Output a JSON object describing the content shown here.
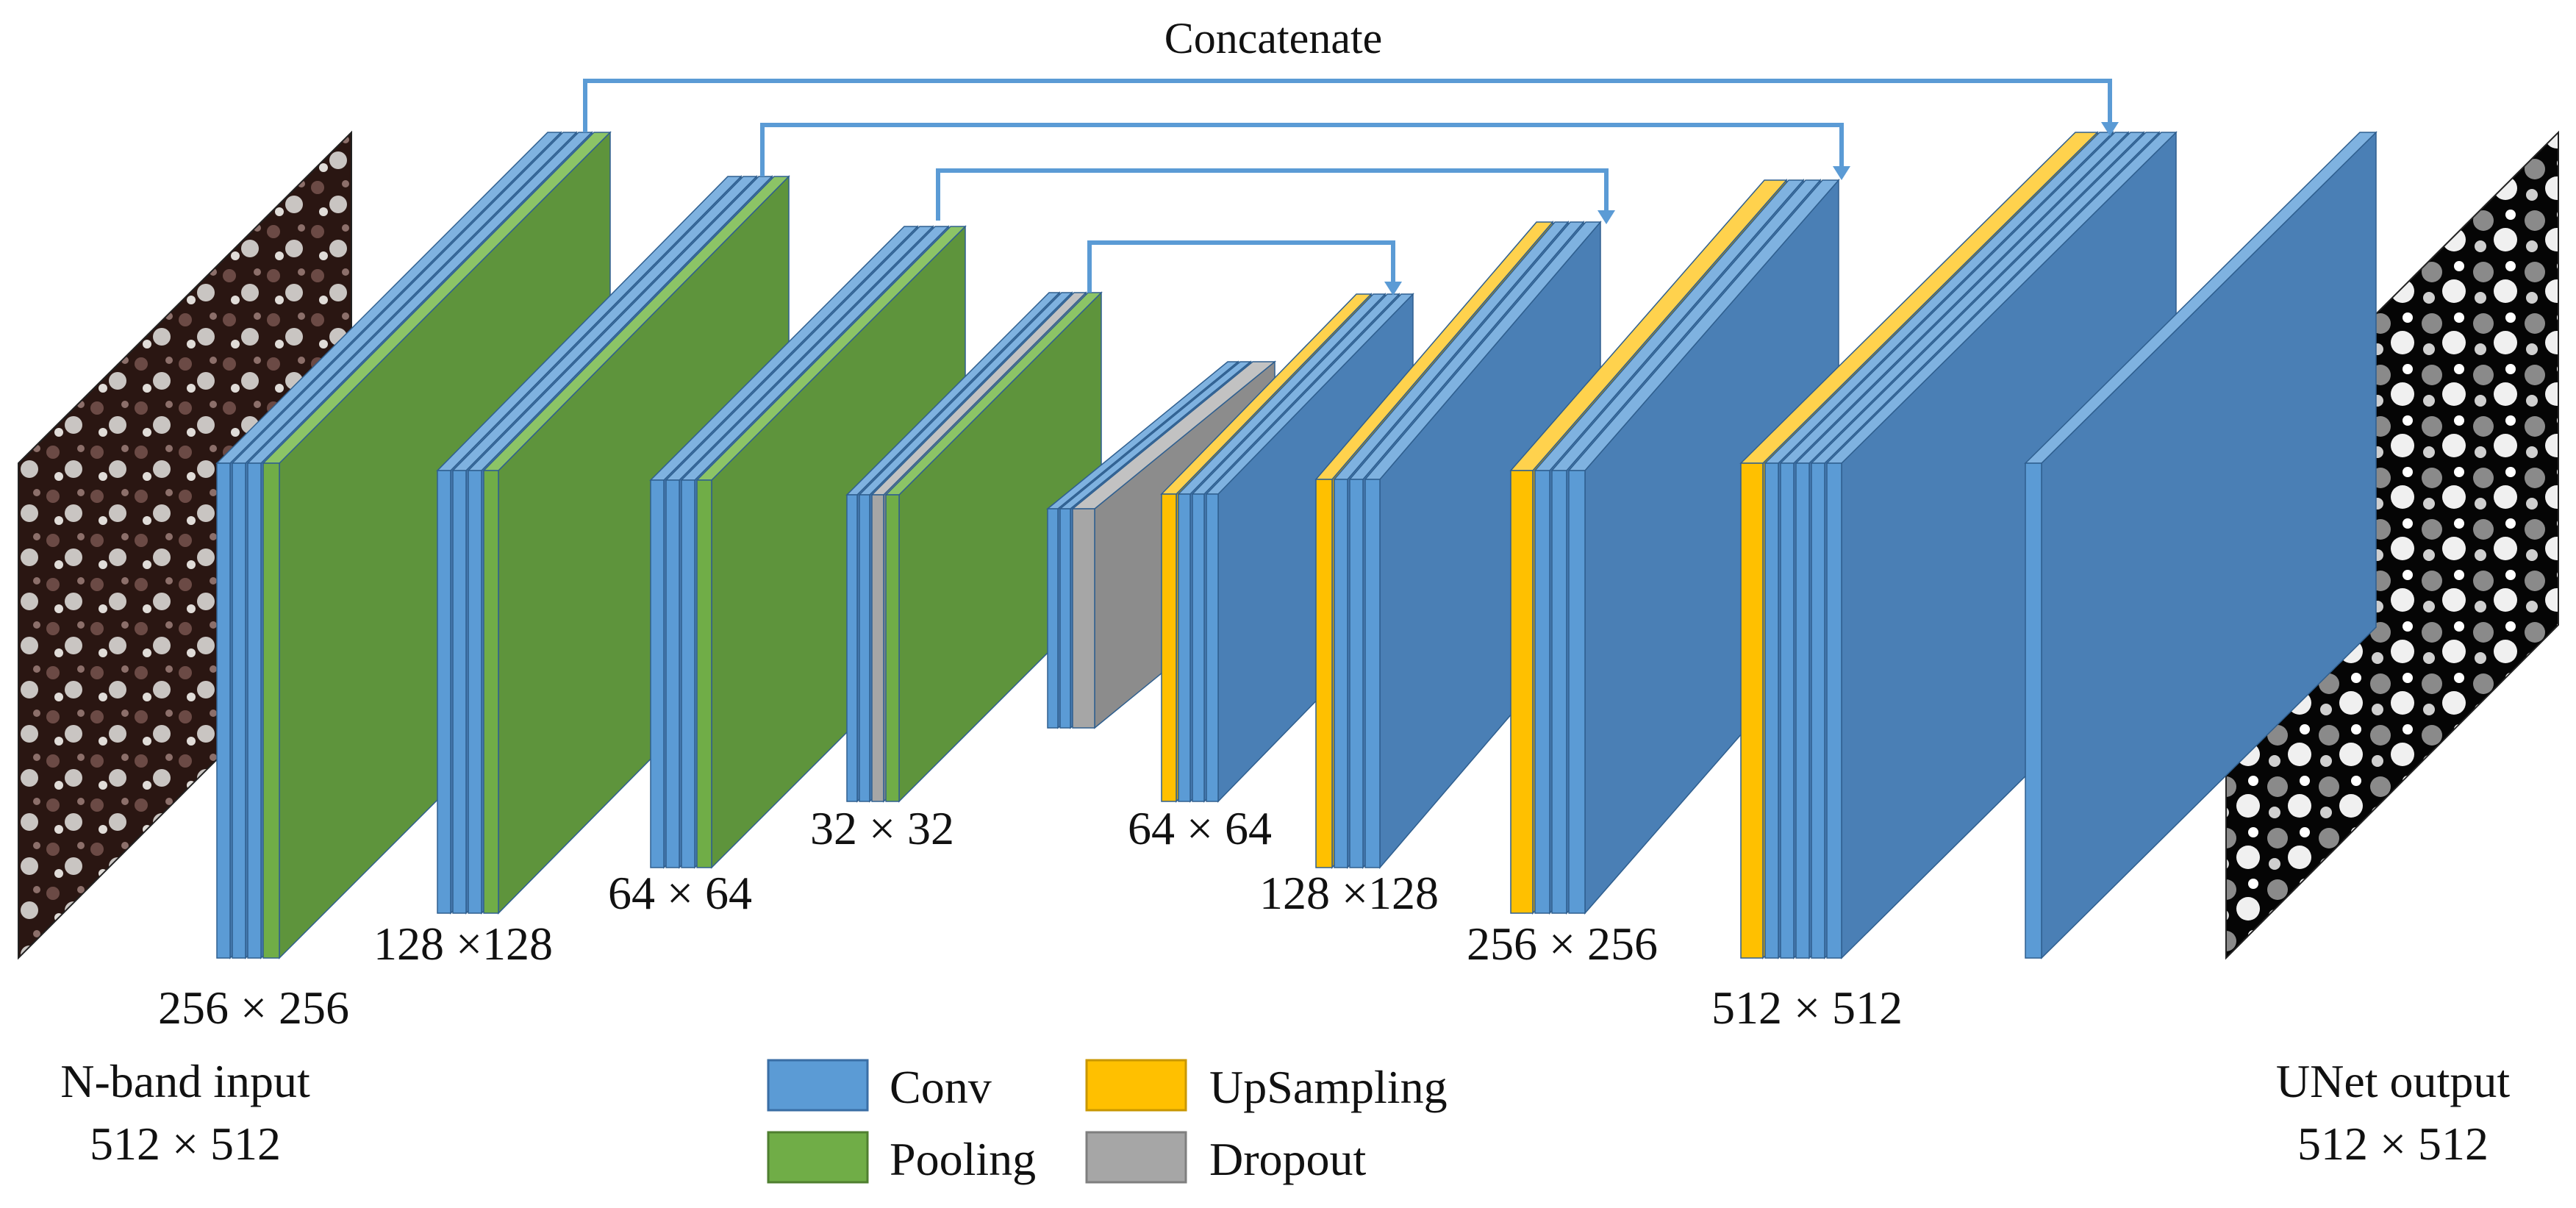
{
  "title": "Concatenate",
  "input": {
    "label": "N-band input",
    "size": "512 × 512"
  },
  "output": {
    "label": "UNet output",
    "size": "512 × 512"
  },
  "dimension_labels": [
    "256 × 256",
    "128 ×128",
    "64 × 64",
    "32 × 32",
    "64 × 64",
    "128 ×128",
    "256 × 256",
    "512 × 512"
  ],
  "legend": [
    {
      "label": "Conv",
      "color": "#5b9bd5"
    },
    {
      "label": "UpSampling",
      "color": "#ffc000"
    },
    {
      "label": "Pooling",
      "color": "#70ad47"
    },
    {
      "label": "Dropout",
      "color": "#a6a6a6"
    }
  ],
  "colors": {
    "conv": "#5b9bd5",
    "conv_side": "#4a7fb5",
    "conv_top": "#7fb2e0",
    "pool": "#70ad47",
    "pool_side": "#5e943c",
    "pool_top": "#8cc466",
    "up": "#ffc000",
    "up_side": "#d9a300",
    "up_top": "#ffd24d",
    "drop": "#a6a6a6",
    "drop_side": "#8c8c8c",
    "drop_top": "#c2c2c2",
    "arrow": "#5b9bd5"
  }
}
